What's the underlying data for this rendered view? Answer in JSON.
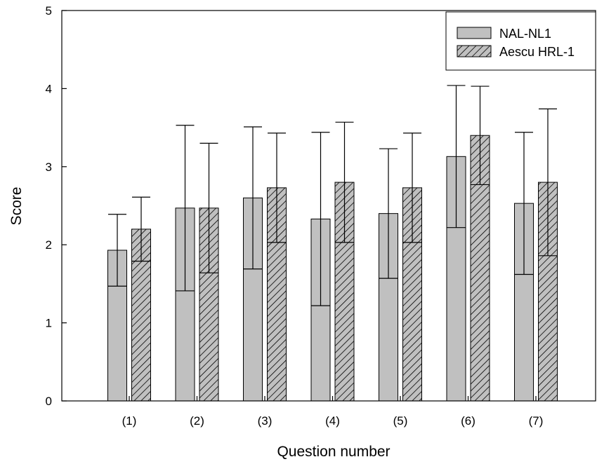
{
  "chart_data": {
    "type": "bar",
    "xlabel": "Question number",
    "ylabel": "Score",
    "ylim": [
      0,
      5
    ],
    "yticks": [
      0,
      1,
      2,
      3,
      4,
      5
    ],
    "categories": [
      "(1)",
      "(2)",
      "(3)",
      "(4)",
      "(5)",
      "(6)",
      "(7)"
    ],
    "grid": false,
    "legend_position": "top-right",
    "error_bars": "upper and lower whiskers",
    "series": [
      {
        "name": "NAL-NL1",
        "fill": "solid",
        "color": "#c0c0c0",
        "values": [
          1.93,
          2.47,
          2.6,
          2.33,
          2.4,
          3.13,
          2.53
        ],
        "error_low": [
          1.47,
          1.41,
          1.69,
          1.22,
          1.57,
          2.22,
          1.62
        ],
        "error_high": [
          2.39,
          3.53,
          3.51,
          3.44,
          3.23,
          4.04,
          3.44
        ]
      },
      {
        "name": "Aescu HRL-1",
        "fill": "hatched",
        "color": "#c0c0c0",
        "values": [
          2.2,
          2.47,
          2.73,
          2.8,
          2.73,
          3.4,
          2.8
        ],
        "error_low": [
          1.79,
          1.64,
          2.03,
          2.03,
          2.03,
          2.77,
          1.86
        ],
        "error_high": [
          2.61,
          3.3,
          3.43,
          3.57,
          3.43,
          4.03,
          3.74
        ]
      }
    ]
  }
}
